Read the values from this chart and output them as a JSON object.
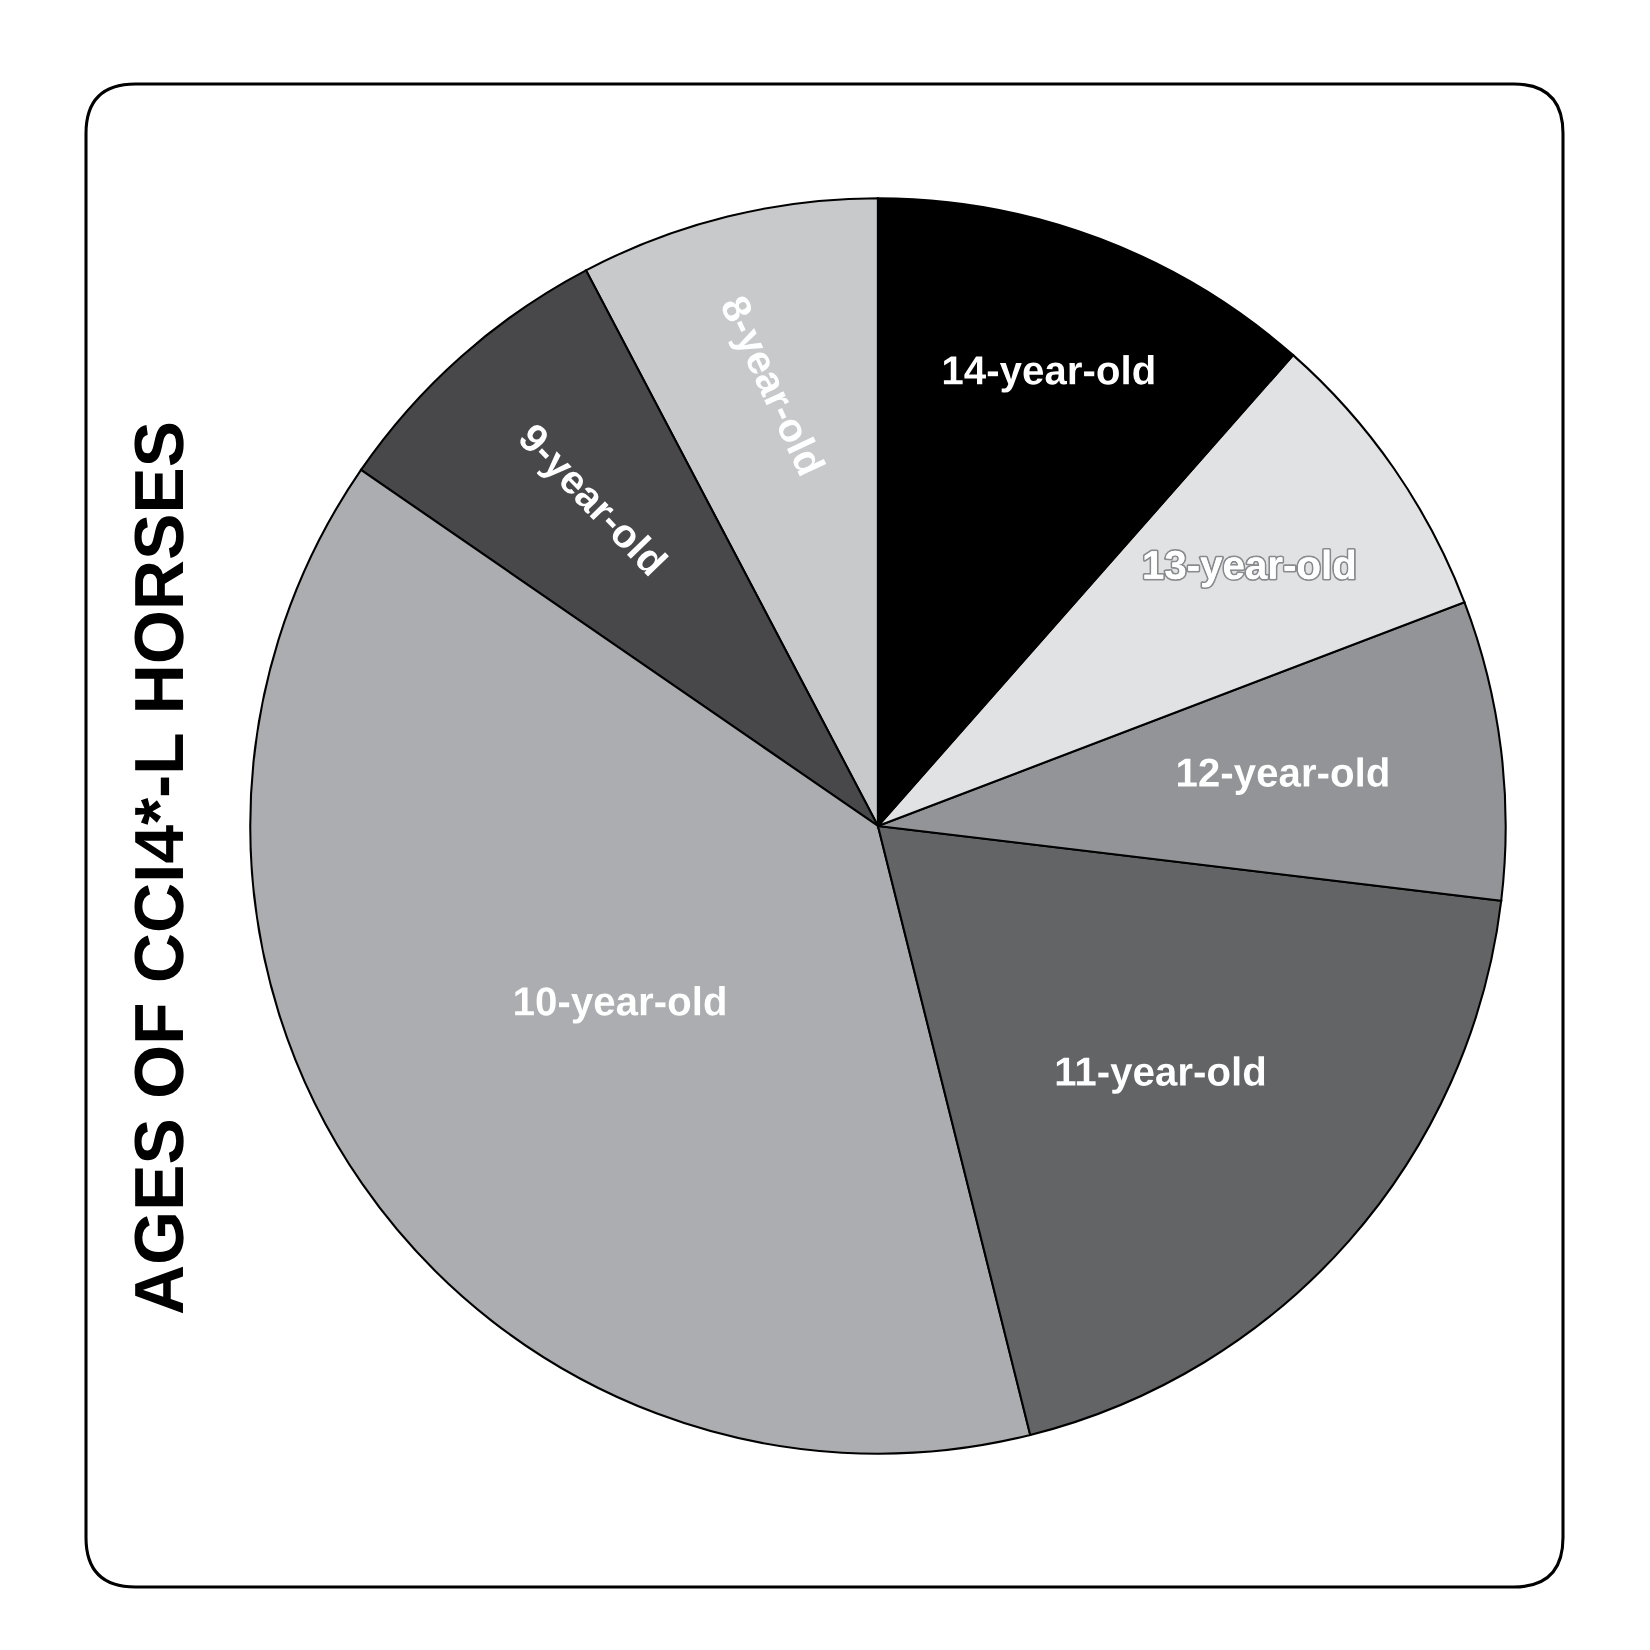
{
  "chart_data": {
    "type": "pie",
    "title": "AGES OF CCI4*-L HORSES",
    "categories": [
      "8-year-old",
      "9-year-old",
      "10-year-old",
      "11-year-old",
      "12-year-old",
      "13-year-old",
      "14-year-old"
    ],
    "values": [
      7.7,
      7.7,
      38.5,
      19.2,
      7.7,
      7.7,
      11.5
    ],
    "colors": [
      "#c8c9cb",
      "#48484a",
      "#acadb0",
      "#636466",
      "#939497",
      "#e1e2e4",
      "#000000"
    ]
  }
}
